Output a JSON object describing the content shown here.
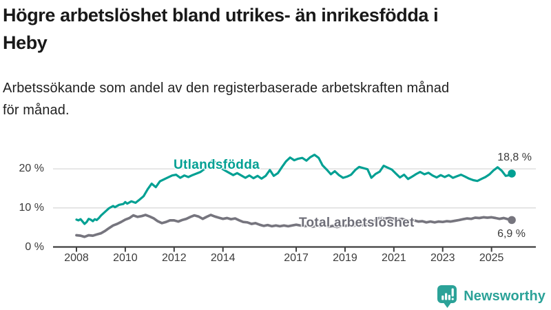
{
  "header": {
    "title_line1": "Högre arbetslöshet bland utrikes- än inrikesfödda i",
    "title_line2": "Heby",
    "subtitle_line1": "Arbetssökande som andel av den registerbaserade arbetskraften månad",
    "subtitle_line2": "för månad."
  },
  "footer": {
    "brand": "Newsworthy"
  },
  "colors": {
    "accent_teal": "#00a093",
    "total_gray": "#76757e",
    "logo_teal": "#2ba298",
    "axis_text": "#3a3a3a",
    "gridline": "#d9d9d9",
    "axis_line": "#3f3f3f"
  },
  "chart_data": {
    "type": "line",
    "title": "Högre arbetslöshet bland utrikes- än inrikesfödda i Heby",
    "subtitle": "Arbetssökande som andel av den registerbaserade arbetskraften månad för månad.",
    "xlabel": "",
    "ylabel": "",
    "unit": "%",
    "xlim": [
      2008,
      2026
    ],
    "ylim": [
      0,
      25
    ],
    "grid": "horizontal",
    "legend_position": "inline-labels",
    "x_ticks": [
      "2008",
      "2010",
      "2012",
      "2014",
      "2017",
      "2019",
      "2021",
      "2023",
      "2025"
    ],
    "y_ticks": [
      {
        "value": 0,
        "label": "0 %"
      },
      {
        "value": 10,
        "label": "10 %"
      },
      {
        "value": 20,
        "label": "20 %"
      }
    ],
    "series": [
      {
        "name": "Utlandsfödda",
        "color": "#00a093",
        "end_label": "18,8 %",
        "end_value": 18.8,
        "points": [
          [
            2008.0,
            7.0
          ],
          [
            2008.08,
            6.8
          ],
          [
            2008.17,
            7.1
          ],
          [
            2008.25,
            6.5
          ],
          [
            2008.33,
            5.9
          ],
          [
            2008.42,
            6.4
          ],
          [
            2008.5,
            7.2
          ],
          [
            2008.58,
            7.0
          ],
          [
            2008.67,
            6.6
          ],
          [
            2008.75,
            7.1
          ],
          [
            2008.83,
            6.9
          ],
          [
            2008.92,
            7.4
          ],
          [
            2009.0,
            8.0
          ],
          [
            2009.17,
            9.0
          ],
          [
            2009.33,
            9.9
          ],
          [
            2009.5,
            10.5
          ],
          [
            2009.58,
            10.2
          ],
          [
            2009.75,
            10.8
          ],
          [
            2009.92,
            11.0
          ],
          [
            2010.0,
            11.5
          ],
          [
            2010.08,
            11.1
          ],
          [
            2010.25,
            11.7
          ],
          [
            2010.42,
            11.3
          ],
          [
            2010.58,
            12.1
          ],
          [
            2010.75,
            13.0
          ],
          [
            2010.92,
            14.8
          ],
          [
            2011.08,
            16.2
          ],
          [
            2011.25,
            15.3
          ],
          [
            2011.42,
            16.8
          ],
          [
            2011.58,
            17.3
          ],
          [
            2011.75,
            17.8
          ],
          [
            2011.92,
            18.3
          ],
          [
            2012.08,
            18.5
          ],
          [
            2012.25,
            17.7
          ],
          [
            2012.42,
            18.3
          ],
          [
            2012.58,
            17.9
          ],
          [
            2012.75,
            18.4
          ],
          [
            2012.92,
            18.8
          ],
          [
            2013.08,
            19.2
          ],
          [
            2013.25,
            20.0
          ],
          [
            2013.42,
            21.0
          ],
          [
            2013.58,
            22.3
          ],
          [
            2013.75,
            21.4
          ],
          [
            2013.92,
            20.2
          ],
          [
            2014.08,
            19.6
          ],
          [
            2014.25,
            19.0
          ],
          [
            2014.42,
            18.4
          ],
          [
            2014.58,
            18.9
          ],
          [
            2014.75,
            18.3
          ],
          [
            2014.92,
            17.7
          ],
          [
            2015.08,
            18.3
          ],
          [
            2015.25,
            17.6
          ],
          [
            2015.42,
            18.2
          ],
          [
            2015.58,
            17.5
          ],
          [
            2015.75,
            18.2
          ],
          [
            2015.92,
            19.7
          ],
          [
            2016.08,
            18.2
          ],
          [
            2016.25,
            18.9
          ],
          [
            2016.42,
            20.5
          ],
          [
            2016.58,
            21.9
          ],
          [
            2016.75,
            22.9
          ],
          [
            2016.92,
            22.2
          ],
          [
            2017.08,
            22.6
          ],
          [
            2017.25,
            22.8
          ],
          [
            2017.42,
            22.1
          ],
          [
            2017.58,
            23.0
          ],
          [
            2017.75,
            23.6
          ],
          [
            2017.92,
            22.8
          ],
          [
            2018.08,
            20.9
          ],
          [
            2018.25,
            19.8
          ],
          [
            2018.42,
            18.6
          ],
          [
            2018.58,
            19.4
          ],
          [
            2018.75,
            18.4
          ],
          [
            2018.92,
            17.7
          ],
          [
            2019.08,
            18.0
          ],
          [
            2019.25,
            18.5
          ],
          [
            2019.42,
            19.7
          ],
          [
            2019.58,
            20.5
          ],
          [
            2019.75,
            20.2
          ],
          [
            2019.92,
            19.9
          ],
          [
            2020.08,
            17.7
          ],
          [
            2020.25,
            18.7
          ],
          [
            2020.42,
            19.3
          ],
          [
            2020.58,
            20.8
          ],
          [
            2020.75,
            20.3
          ],
          [
            2020.92,
            19.8
          ],
          [
            2021.08,
            18.8
          ],
          [
            2021.25,
            17.8
          ],
          [
            2021.42,
            18.5
          ],
          [
            2021.58,
            17.4
          ],
          [
            2021.75,
            18.0
          ],
          [
            2021.92,
            18.7
          ],
          [
            2022.08,
            19.2
          ],
          [
            2022.25,
            18.6
          ],
          [
            2022.42,
            19.0
          ],
          [
            2022.58,
            18.3
          ],
          [
            2022.75,
            17.8
          ],
          [
            2022.92,
            18.4
          ],
          [
            2023.08,
            17.9
          ],
          [
            2023.25,
            18.4
          ],
          [
            2023.42,
            17.7
          ],
          [
            2023.58,
            18.1
          ],
          [
            2023.75,
            18.5
          ],
          [
            2023.92,
            18.0
          ],
          [
            2024.08,
            17.5
          ],
          [
            2024.25,
            17.1
          ],
          [
            2024.42,
            16.9
          ],
          [
            2024.58,
            17.4
          ],
          [
            2024.75,
            17.9
          ],
          [
            2024.92,
            18.6
          ],
          [
            2025.08,
            19.6
          ],
          [
            2025.25,
            20.4
          ],
          [
            2025.42,
            19.5
          ],
          [
            2025.58,
            18.2
          ],
          [
            2025.75,
            18.4
          ],
          [
            2025.83,
            18.8
          ]
        ]
      },
      {
        "name": "Total arbetslöshet",
        "color": "#76757e",
        "end_label": "6,9 %",
        "end_value": 6.9,
        "points": [
          [
            2008.0,
            3.0
          ],
          [
            2008.17,
            2.9
          ],
          [
            2008.33,
            2.6
          ],
          [
            2008.5,
            3.0
          ],
          [
            2008.67,
            2.9
          ],
          [
            2008.83,
            3.2
          ],
          [
            2009.0,
            3.5
          ],
          [
            2009.17,
            4.1
          ],
          [
            2009.33,
            4.8
          ],
          [
            2009.5,
            5.5
          ],
          [
            2009.67,
            5.9
          ],
          [
            2009.83,
            6.4
          ],
          [
            2010.0,
            7.0
          ],
          [
            2010.17,
            7.4
          ],
          [
            2010.33,
            8.1
          ],
          [
            2010.5,
            7.7
          ],
          [
            2010.67,
            7.9
          ],
          [
            2010.83,
            8.2
          ],
          [
            2011.0,
            7.8
          ],
          [
            2011.17,
            7.3
          ],
          [
            2011.33,
            6.6
          ],
          [
            2011.5,
            6.1
          ],
          [
            2011.67,
            6.4
          ],
          [
            2011.83,
            6.8
          ],
          [
            2012.0,
            6.8
          ],
          [
            2012.17,
            6.5
          ],
          [
            2012.33,
            6.9
          ],
          [
            2012.5,
            7.2
          ],
          [
            2012.67,
            7.7
          ],
          [
            2012.83,
            8.1
          ],
          [
            2013.0,
            7.8
          ],
          [
            2013.17,
            7.2
          ],
          [
            2013.33,
            7.7
          ],
          [
            2013.5,
            8.2
          ],
          [
            2013.67,
            7.8
          ],
          [
            2013.83,
            7.5
          ],
          [
            2014.0,
            7.2
          ],
          [
            2014.17,
            7.4
          ],
          [
            2014.33,
            7.1
          ],
          [
            2014.5,
            7.3
          ],
          [
            2014.67,
            6.8
          ],
          [
            2014.83,
            6.4
          ],
          [
            2015.0,
            6.3
          ],
          [
            2015.17,
            5.9
          ],
          [
            2015.33,
            6.1
          ],
          [
            2015.5,
            5.7
          ],
          [
            2015.67,
            5.4
          ],
          [
            2015.83,
            5.6
          ],
          [
            2016.0,
            5.3
          ],
          [
            2016.17,
            5.5
          ],
          [
            2016.33,
            5.3
          ],
          [
            2016.5,
            5.5
          ],
          [
            2016.67,
            5.3
          ],
          [
            2016.83,
            5.5
          ],
          [
            2017.0,
            5.7
          ],
          [
            2017.17,
            5.5
          ],
          [
            2017.33,
            5.3
          ],
          [
            2017.5,
            5.5
          ],
          [
            2017.67,
            5.2
          ],
          [
            2017.83,
            5.4
          ],
          [
            2018.0,
            5.3
          ],
          [
            2018.17,
            5.5
          ],
          [
            2018.33,
            5.2
          ],
          [
            2018.5,
            5.4
          ],
          [
            2018.67,
            5.1
          ],
          [
            2018.83,
            5.3
          ],
          [
            2019.0,
            5.4
          ],
          [
            2019.17,
            5.6
          ],
          [
            2019.33,
            5.4
          ],
          [
            2019.5,
            5.6
          ],
          [
            2019.67,
            5.5
          ],
          [
            2019.83,
            5.7
          ],
          [
            2020.0,
            5.9
          ],
          [
            2020.17,
            6.6
          ],
          [
            2020.33,
            7.3
          ],
          [
            2020.5,
            7.5
          ],
          [
            2020.67,
            7.3
          ],
          [
            2020.83,
            7.4
          ],
          [
            2021.0,
            7.2
          ],
          [
            2021.17,
            7.0
          ],
          [
            2021.33,
            7.2
          ],
          [
            2021.5,
            6.9
          ],
          [
            2021.67,
            6.7
          ],
          [
            2021.83,
            6.8
          ],
          [
            2022.0,
            6.5
          ],
          [
            2022.17,
            6.6
          ],
          [
            2022.33,
            6.3
          ],
          [
            2022.5,
            6.5
          ],
          [
            2022.67,
            6.3
          ],
          [
            2022.83,
            6.5
          ],
          [
            2023.0,
            6.4
          ],
          [
            2023.17,
            6.6
          ],
          [
            2023.33,
            6.5
          ],
          [
            2023.5,
            6.7
          ],
          [
            2023.67,
            6.9
          ],
          [
            2023.83,
            7.1
          ],
          [
            2024.0,
            7.3
          ],
          [
            2024.17,
            7.2
          ],
          [
            2024.33,
            7.5
          ],
          [
            2024.5,
            7.4
          ],
          [
            2024.67,
            7.6
          ],
          [
            2024.83,
            7.5
          ],
          [
            2025.0,
            7.6
          ],
          [
            2025.17,
            7.4
          ],
          [
            2025.33,
            7.2
          ],
          [
            2025.5,
            7.4
          ],
          [
            2025.67,
            7.1
          ],
          [
            2025.83,
            6.9
          ]
        ]
      }
    ]
  }
}
